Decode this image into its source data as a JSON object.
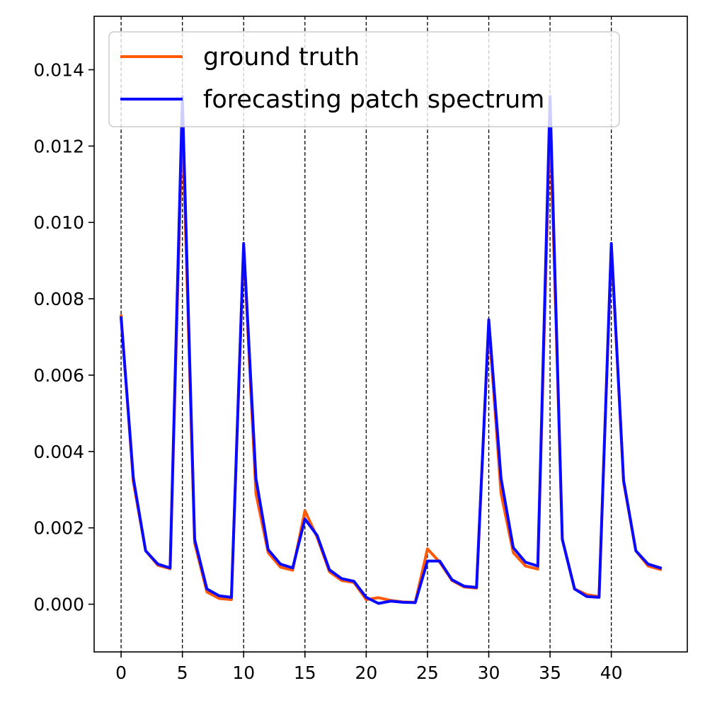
{
  "chart_data": {
    "type": "line",
    "title": "",
    "xlabel": "",
    "ylabel": "",
    "xlim": [
      -2.2,
      46.2
    ],
    "ylim": [
      -0.00125,
      0.0154
    ],
    "xticks": [
      0,
      5,
      10,
      15,
      20,
      25,
      30,
      35,
      40
    ],
    "xtick_labels": [
      "0",
      "5",
      "10",
      "15",
      "20",
      "25",
      "30",
      "35",
      "40"
    ],
    "yticks": [
      0.0,
      0.002,
      0.004,
      0.006,
      0.008,
      0.01,
      0.012,
      0.014
    ],
    "ytick_labels": [
      "0.000",
      "0.002",
      "0.004",
      "0.006",
      "0.008",
      "0.010",
      "0.012",
      "0.014"
    ],
    "vlines": [
      0,
      5,
      10,
      15,
      20,
      25,
      30,
      35,
      40
    ],
    "legend_position": "top-left",
    "x": [
      0,
      1,
      2,
      3,
      4,
      5,
      6,
      7,
      8,
      9,
      10,
      11,
      12,
      13,
      14,
      15,
      16,
      17,
      18,
      19,
      20,
      21,
      22,
      23,
      24,
      25,
      26,
      27,
      28,
      29,
      30,
      31,
      32,
      33,
      34,
      35,
      36,
      37,
      38,
      39,
      40,
      41,
      42,
      43,
      44
    ],
    "series": [
      {
        "name": "ground truth",
        "color": "#ff5a0a",
        "values": [
          0.00755,
          0.0032,
          0.0014,
          0.00102,
          0.00093,
          0.0127,
          0.0016,
          0.00032,
          0.00015,
          0.00012,
          0.0094,
          0.0029,
          0.00135,
          0.00097,
          0.00089,
          0.00245,
          0.00175,
          0.00085,
          0.00062,
          0.00057,
          0.00012,
          0.00017,
          0.0001,
          6e-05,
          5e-05,
          0.00145,
          0.0011,
          0.00062,
          0.00045,
          0.00042,
          0.00735,
          0.0029,
          0.00135,
          0.001,
          0.00092,
          0.01275,
          0.0017,
          0.0004,
          0.00025,
          0.0002,
          0.0094,
          0.0032,
          0.0014,
          0.001,
          0.00091
        ]
      },
      {
        "name": "forecasting patch spectrum",
        "color": "#0a0aff",
        "values": [
          0.0075,
          0.0033,
          0.0014,
          0.00105,
          0.00095,
          0.0133,
          0.0017,
          0.0004,
          0.00022,
          0.00018,
          0.00945,
          0.0033,
          0.00143,
          0.00105,
          0.00095,
          0.00223,
          0.0018,
          0.0009,
          0.00067,
          0.0006,
          0.00018,
          2e-05,
          8e-05,
          5e-05,
          4e-05,
          0.00113,
          0.00113,
          0.00064,
          0.00047,
          0.00044,
          0.00745,
          0.0033,
          0.00148,
          0.0011,
          0.001,
          0.0133,
          0.0017,
          0.0004,
          0.0002,
          0.00018,
          0.00945,
          0.00325,
          0.0014,
          0.00105,
          0.00095
        ]
      }
    ]
  }
}
